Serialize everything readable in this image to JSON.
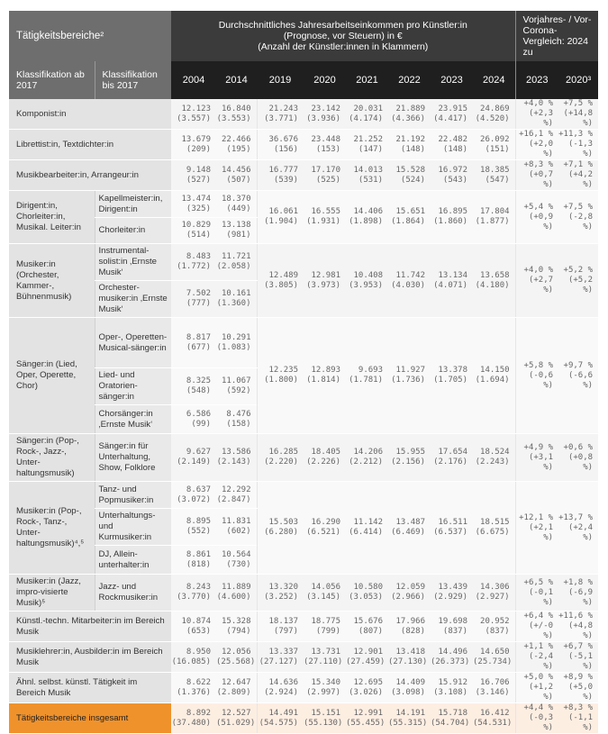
{
  "header": {
    "category_title": "Tätigkeitsbereiche²",
    "income_title_line1": "Durchschnittliches Jahresarbeitseinkommen pro Künstler:in",
    "income_title_line2": "(Prognose, vor Steuern) in €",
    "income_title_line3": "(Anzahl der Künstler:innen in Klammern)",
    "comparison_title": "Vorjahres- / Vor-Corona-Vergleich: 2024 zu",
    "class_new": "Klassifikation ab 2017",
    "class_old": "Klassifikation bis 2017",
    "years": [
      "2004",
      "2014",
      "2019",
      "2020",
      "2021",
      "2022",
      "2023",
      "2024"
    ],
    "compare_years": [
      "2023",
      "2020³"
    ]
  },
  "groups": [
    {
      "cat": "Komponist:in",
      "subs": [
        {
          "name": null,
          "old": [
            [
              "12.123",
              "(3.557)"
            ],
            [
              "16.840",
              "(3.553)"
            ]
          ]
        }
      ],
      "values": [
        [
          "21.243",
          "(3.771)"
        ],
        [
          "23.142",
          "(3.936)"
        ],
        [
          "20.031",
          "(4.174)"
        ],
        [
          "21.889",
          "(4.366)"
        ],
        [
          "23.915",
          "(4.417)"
        ],
        [
          "24.869",
          "(4.520)"
        ]
      ],
      "changes": [
        [
          "+4,0 %",
          "(+2,3 %)"
        ],
        [
          "+7,5 %",
          "(+14,8 %)"
        ]
      ]
    },
    {
      "cat": "Librettist:in, Textdichter:in",
      "subs": [
        {
          "name": null,
          "old": [
            [
              "13.679",
              "(209)"
            ],
            [
              "22.466",
              "(195)"
            ]
          ]
        }
      ],
      "values": [
        [
          "36.676",
          "(156)"
        ],
        [
          "23.448",
          "(153)"
        ],
        [
          "21.252",
          "(147)"
        ],
        [
          "21.192",
          "(148)"
        ],
        [
          "22.482",
          "(148)"
        ],
        [
          "26.092",
          "(151)"
        ]
      ],
      "changes": [
        [
          "+16,1 %",
          "(+2,0 %)"
        ],
        [
          "+11,3 %",
          "(-1,3 %)"
        ]
      ]
    },
    {
      "cat": "Musikbearbeiter:in, Arrangeur:in",
      "subs": [
        {
          "name": null,
          "old": [
            [
              "9.148",
              "(527)"
            ],
            [
              "14.456",
              "(507)"
            ]
          ]
        }
      ],
      "values": [
        [
          "16.777",
          "(539)"
        ],
        [
          "17.170",
          "(525)"
        ],
        [
          "14.013",
          "(531)"
        ],
        [
          "15.528",
          "(524)"
        ],
        [
          "16.972",
          "(543)"
        ],
        [
          "18.385",
          "(547)"
        ]
      ],
      "changes": [
        [
          "+8,3 %",
          "(+0,7 %)"
        ],
        [
          "+7,1 %",
          "(+4,2 %)"
        ]
      ]
    },
    {
      "cat": "Dirigent:in, Chorleiter:in, Musikal. Leiter:in",
      "subs": [
        {
          "name": "Kapellmeister:in, Dirigent:in",
          "old": [
            [
              "13.474",
              "(325)"
            ],
            [
              "18.370",
              "(449)"
            ]
          ]
        },
        {
          "name": "Chorleiter:in",
          "old": [
            [
              "10.829",
              "(514)"
            ],
            [
              "13.138",
              "(981)"
            ]
          ]
        }
      ],
      "values": [
        [
          "16.061",
          "(1.904)"
        ],
        [
          "16.555",
          "(1.931)"
        ],
        [
          "14.406",
          "(1.898)"
        ],
        [
          "15.651",
          "(1.864)"
        ],
        [
          "16.895",
          "(1.860)"
        ],
        [
          "17.804",
          "(1.877)"
        ]
      ],
      "changes": [
        [
          "+5,4 %",
          "(+0,9 %)"
        ],
        [
          "+7,5 %",
          "(-2,8 %)"
        ]
      ]
    },
    {
      "cat": "Musiker:in (Orchester, Kammer-, Bühnenmusik)",
      "subs": [
        {
          "name": "Instrumental-solist:in ‚Ernste Musik‘",
          "old": [
            [
              "8.483",
              "(1.772)"
            ],
            [
              "11.721",
              "(2.058)"
            ]
          ]
        },
        {
          "name": "Orchester-musiker:in ‚Ernste Musik‘",
          "old": [
            [
              "7.502",
              "(777)"
            ],
            [
              "10.161",
              "(1.360)"
            ]
          ]
        }
      ],
      "values": [
        [
          "12.489",
          "(3.805)"
        ],
        [
          "12.981",
          "(3.973)"
        ],
        [
          "10.408",
          "(3.953)"
        ],
        [
          "11.742",
          "(4.030)"
        ],
        [
          "13.134",
          "(4.071)"
        ],
        [
          "13.658",
          "(4.180)"
        ]
      ],
      "changes": [
        [
          "+4,0 %",
          "(+2,7 %)"
        ],
        [
          "+5,2 %",
          "(+5,2 %)"
        ]
      ]
    },
    {
      "cat": "Sänger:in (Lied, Oper, Operette, Chor)",
      "subs": [
        {
          "name": "Oper-, Operetten-Musical-sänger:in",
          "old": [
            [
              "8.817",
              "(677)"
            ],
            [
              "10.291",
              "(1.083)"
            ]
          ]
        },
        {
          "name": "Lied- und Oratorien-sänger:in",
          "old": [
            [
              "8.325",
              "(548)"
            ],
            [
              "11.067",
              "(592)"
            ]
          ]
        },
        {
          "name": "Chorsänger:in ‚Ernste Musik‘",
          "old": [
            [
              "6.586",
              "(99)"
            ],
            [
              "8.476",
              "(158)"
            ]
          ]
        }
      ],
      "values": [
        [
          "12.235",
          "(1.800)"
        ],
        [
          "12.893",
          "(1.814)"
        ],
        [
          "9.693",
          "(1.781)"
        ],
        [
          "11.927",
          "(1.736)"
        ],
        [
          "13.378",
          "(1.705)"
        ],
        [
          "14.150",
          "(1.694)"
        ]
      ],
      "changes": [
        [
          "+5,8 %",
          "(-0,6 %)"
        ],
        [
          "+9,7 %",
          "(-6,6 %)"
        ]
      ]
    },
    {
      "cat": "Sänger:in (Pop-, Rock-, Jazz-, Unter-haltungsmusik)",
      "subs": [
        {
          "name": "Sänger:in für Unterhaltung, Show, Folklore",
          "old": [
            [
              "9.627",
              "(2.149)"
            ],
            [
              "13.586",
              "(2.143)"
            ]
          ]
        }
      ],
      "values": [
        [
          "16.285",
          "(2.220)"
        ],
        [
          "18.405",
          "(2.226)"
        ],
        [
          "14.206",
          "(2.212)"
        ],
        [
          "15.955",
          "(2.156)"
        ],
        [
          "17.654",
          "(2.176)"
        ],
        [
          "18.524",
          "(2.243)"
        ]
      ],
      "changes": [
        [
          "+4,9 %",
          "(+3,1 %)"
        ],
        [
          "+0,6 %",
          "(+0,8 %)"
        ]
      ]
    },
    {
      "cat": "Musiker:in (Pop-, Rock-, Tanz-, Unter-haltungsmusik)⁴,⁵",
      "subs": [
        {
          "name": "Tanz- und Popmusiker:in",
          "old": [
            [
              "8.637",
              "(3.072)"
            ],
            [
              "12.292",
              "(2.847)"
            ]
          ]
        },
        {
          "name": "Unterhaltungs- und Kurmusiker:in",
          "old": [
            [
              "8.895",
              "(552)"
            ],
            [
              "11.831",
              "(602)"
            ]
          ]
        },
        {
          "name": "DJ, Allein-unterhalter:in",
          "old": [
            [
              "8.861",
              "(818)"
            ],
            [
              "10.564",
              "(730)"
            ]
          ]
        }
      ],
      "values": [
        [
          "15.503",
          "(6.280)"
        ],
        [
          "16.290",
          "(6.521)"
        ],
        [
          "11.142",
          "(6.414)"
        ],
        [
          "13.487",
          "(6.469)"
        ],
        [
          "16.511",
          "(6.537)"
        ],
        [
          "18.515",
          "(6.675)"
        ]
      ],
      "changes": [
        [
          "+12,1 %",
          "(+2,1 %)"
        ],
        [
          "+13,7 %",
          "(+2,4 %)"
        ]
      ]
    },
    {
      "cat": "Musiker:in (Jazz, impro-visierte Musik)⁵",
      "subs": [
        {
          "name": "Jazz- und Rockmusiker:in",
          "old": [
            [
              "8.243",
              "(3.770)"
            ],
            [
              "11.889",
              "(4.600)"
            ]
          ]
        }
      ],
      "values": [
        [
          "13.320",
          "(3.252)"
        ],
        [
          "14.056",
          "(3.145)"
        ],
        [
          "10.580",
          "(3.053)"
        ],
        [
          "12.059",
          "(2.966)"
        ],
        [
          "13.439",
          "(2.929)"
        ],
        [
          "14.306",
          "(2.927)"
        ]
      ],
      "changes": [
        [
          "+6,5 %",
          "(-0,1 %)"
        ],
        [
          "+1,8 %",
          "(-6,9 %)"
        ]
      ]
    },
    {
      "cat": "Künstl.-techn. Mitarbeiter:in im Bereich Musik",
      "subs": [
        {
          "name": null,
          "old": [
            [
              "10.874",
              "(653)"
            ],
            [
              "15.328",
              "(794)"
            ]
          ]
        }
      ],
      "values": [
        [
          "18.137",
          "(797)"
        ],
        [
          "18.775",
          "(799)"
        ],
        [
          "15.676",
          "(807)"
        ],
        [
          "17.966",
          "(828)"
        ],
        [
          "19.698",
          "(837)"
        ],
        [
          "20.952",
          "(837)"
        ]
      ],
      "changes": [
        [
          "+6,4 %",
          "(+/-0 %)"
        ],
        [
          "+11,6 %",
          "(+4,8 %)"
        ]
      ]
    },
    {
      "cat": "Musiklehrer:in, Ausbilder:in im Bereich Musik",
      "subs": [
        {
          "name": null,
          "old": [
            [
              "8.950",
              "(16.085)"
            ],
            [
              "12.056",
              "(25.568)"
            ]
          ]
        }
      ],
      "values": [
        [
          "13.337",
          "(27.127)"
        ],
        [
          "13.731",
          "(27.110)"
        ],
        [
          "12.901",
          "(27.459)"
        ],
        [
          "13.418",
          "(27.130)"
        ],
        [
          "14.496",
          "(26.373)"
        ],
        [
          "14.650",
          "(25.734)"
        ]
      ],
      "changes": [
        [
          "+1,1 %",
          "(-2,4 %)"
        ],
        [
          "+6,7 %",
          "(-5,1 %)"
        ]
      ]
    },
    {
      "cat": "Ähnl. selbst. künstl. Tätigkeit im Bereich Musik",
      "subs": [
        {
          "name": null,
          "old": [
            [
              "8.622",
              "(1.376)"
            ],
            [
              "12.647",
              "(2.809)"
            ]
          ]
        }
      ],
      "values": [
        [
          "14.636",
          "(2.924)"
        ],
        [
          "15.340",
          "(2.997)"
        ],
        [
          "12.695",
          "(3.026)"
        ],
        [
          "14.409",
          "(3.098)"
        ],
        [
          "15.912",
          "(3.108)"
        ],
        [
          "16.706",
          "(3.146)"
        ]
      ],
      "changes": [
        [
          "+5,0 %",
          "(+1,2 %)"
        ],
        [
          "+8,9 %",
          "(+5,0 %)"
        ]
      ]
    },
    {
      "cat": "Tätigkeitsbereiche insgesamt",
      "total": true,
      "subs": [
        {
          "name": null,
          "old": [
            [
              "8.892",
              "(37.480)"
            ],
            [
              "12.527",
              "(51.029)"
            ]
          ]
        }
      ],
      "values": [
        [
          "14.491",
          "(54.575)"
        ],
        [
          "15.151",
          "(55.130)"
        ],
        [
          "12.991",
          "(55.455)"
        ],
        [
          "14.191",
          "(55.315)"
        ],
        [
          "15.718",
          "(54.704)"
        ],
        [
          "16.412",
          "(54.531)"
        ]
      ],
      "changes": [
        [
          "+4,4 %",
          "(-0,3 %)"
        ],
        [
          "+8,3 %",
          "(-1,1 %)"
        ]
      ]
    }
  ],
  "colors": {
    "total_accent": "#f0922b",
    "header_dark": "#3b3b3b",
    "header_darker": "#1f1f1f"
  }
}
